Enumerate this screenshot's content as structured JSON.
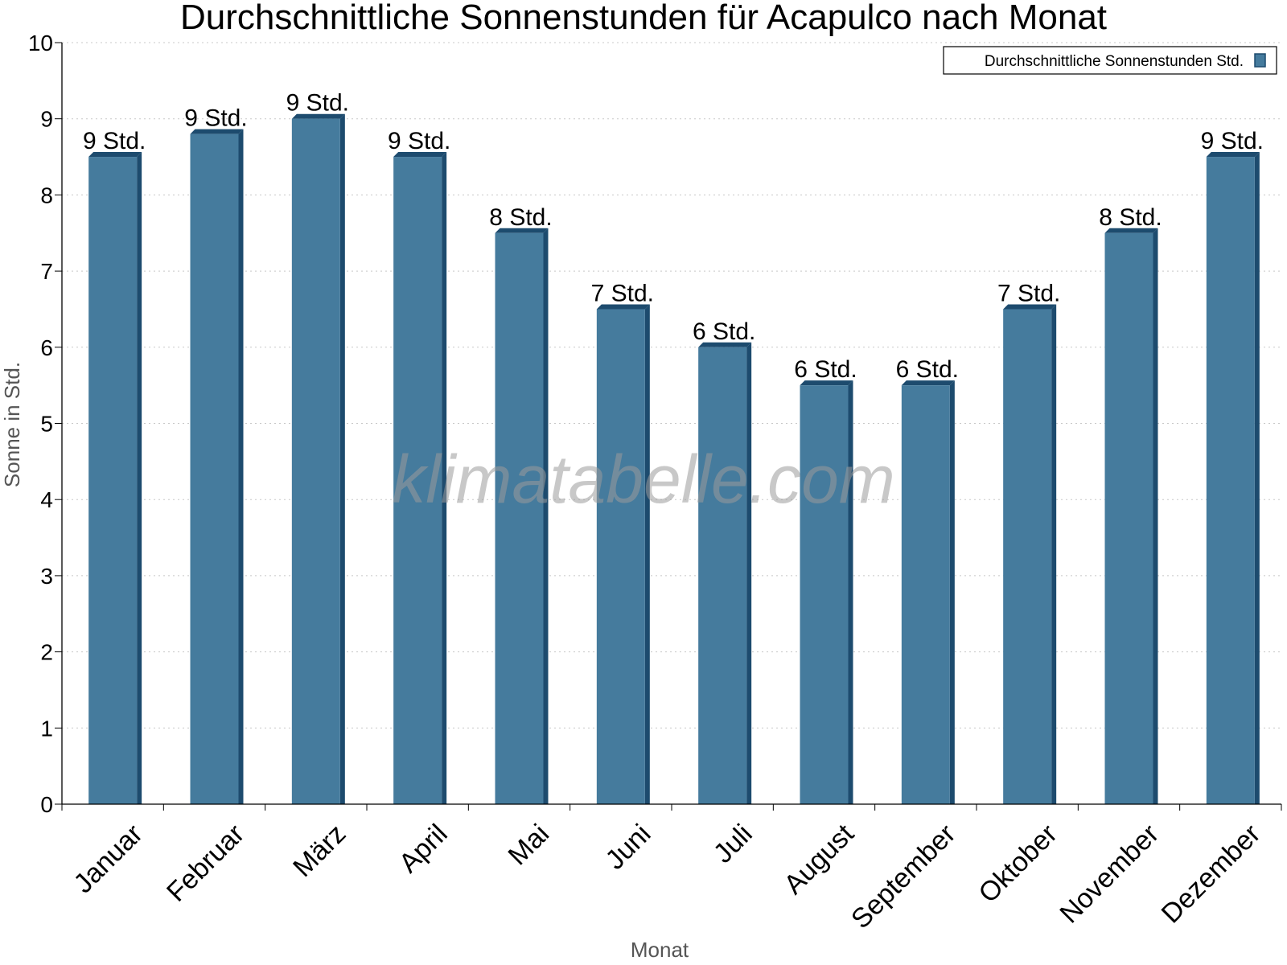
{
  "chart_data": {
    "type": "bar",
    "title": "Durchschnittliche Sonnenstunden für Acapulco nach Monat",
    "xlabel": "Monat",
    "ylabel": "Sonne in Std.",
    "ylim": [
      0,
      10
    ],
    "yticks": [
      "0",
      "1",
      "2",
      "3",
      "4",
      "5",
      "6",
      "7",
      "8",
      "9",
      "10"
    ],
    "categories": [
      "Januar",
      "Februar",
      "März",
      "April",
      "Mai",
      "Juni",
      "Juli",
      "August",
      "September",
      "Oktober",
      "November",
      "Dezember"
    ],
    "series": [
      {
        "name": "Durchschnittliche Sonnenstunden Std.",
        "values": [
          8.5,
          8.8,
          9.0,
          8.5,
          7.5,
          6.5,
          6.0,
          5.5,
          5.5,
          6.5,
          7.5,
          8.5
        ],
        "labels": [
          "9 Std.",
          "9 Std.",
          "9 Std.",
          "9 Std.",
          "8 Std.",
          "7 Std.",
          "6 Std.",
          "6 Std.",
          "6 Std.",
          "7 Std.",
          "8 Std.",
          "9 Std."
        ],
        "color": "#457b9d",
        "side_color": "#1d4b6e"
      }
    ],
    "grid": true,
    "legend_position": "top-right"
  },
  "watermark": "klimatabelle.com"
}
